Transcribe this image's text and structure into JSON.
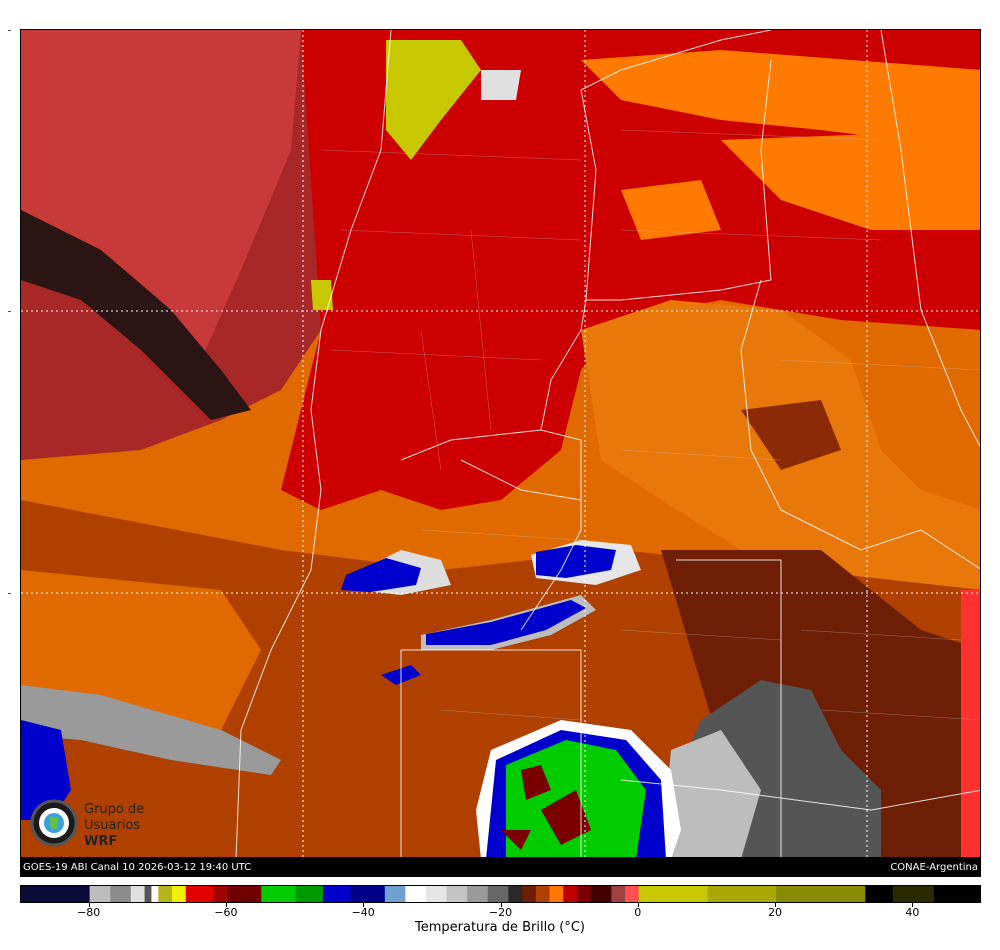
{
  "caption": {
    "left": "GOES-19 ABI Canal 10 2026-03-12 19:40 UTC",
    "right": "CONAE-Argentina"
  },
  "logo": {
    "line1": "Grupo de",
    "line2": "Usuarios",
    "line3": "WRF"
  },
  "colorbar": {
    "title": "Temperatura de Brillo (°C)",
    "min": -90,
    "max": 50,
    "ticks": [
      {
        "value": -80,
        "label": "−80"
      },
      {
        "value": -60,
        "label": "−60"
      },
      {
        "value": -40,
        "label": "−40"
      },
      {
        "value": -20,
        "label": "−20"
      },
      {
        "value": 0,
        "label": "0"
      },
      {
        "value": 20,
        "label": "20"
      },
      {
        "value": 40,
        "label": "40"
      }
    ],
    "segments": [
      {
        "from": -90,
        "to": -80,
        "color": "#0b0b3a"
      },
      {
        "from": -80,
        "to": -77,
        "color": "#bdbdbd"
      },
      {
        "from": -77,
        "to": -74,
        "color": "#8c8c8c"
      },
      {
        "from": -74,
        "to": -72,
        "color": "#e0e0e0"
      },
      {
        "from": -72,
        "to": -71,
        "color": "#555555"
      },
      {
        "from": -71,
        "to": -70,
        "color": "#ffffff"
      },
      {
        "from": -70,
        "to": -68,
        "color": "#b5b51a"
      },
      {
        "from": -68,
        "to": -66,
        "color": "#f0f000"
      },
      {
        "from": -66,
        "to": -62,
        "color": "#e00000"
      },
      {
        "from": -62,
        "to": -60,
        "color": "#a00000"
      },
      {
        "from": -60,
        "to": -55,
        "color": "#700000"
      },
      {
        "from": -55,
        "to": -50,
        "color": "#00cc00"
      },
      {
        "from": -50,
        "to": -46,
        "color": "#009900"
      },
      {
        "from": -46,
        "to": -42,
        "color": "#0000cc"
      },
      {
        "from": -42,
        "to": -37,
        "color": "#000088"
      },
      {
        "from": -37,
        "to": -34,
        "color": "#6fa0d0"
      },
      {
        "from": -34,
        "to": -31,
        "color": "#ffffff"
      },
      {
        "from": -31,
        "to": -28,
        "color": "#e6e6e6"
      },
      {
        "from": -28,
        "to": -25,
        "color": "#c4c4c4"
      },
      {
        "from": -25,
        "to": -22,
        "color": "#9a9a9a"
      },
      {
        "from": -22,
        "to": -19,
        "color": "#666666"
      },
      {
        "from": -19,
        "to": -17,
        "color": "#2a2a2a"
      },
      {
        "from": -17,
        "to": -15,
        "color": "#6e1e05"
      },
      {
        "from": -15,
        "to": -13,
        "color": "#b04000"
      },
      {
        "from": -13,
        "to": -11,
        "color": "#ff7700"
      },
      {
        "from": -11,
        "to": -9,
        "color": "#c00000"
      },
      {
        "from": -9,
        "to": -7,
        "color": "#7a0000"
      },
      {
        "from": -7,
        "to": -4,
        "color": "#400000"
      },
      {
        "from": -4,
        "to": -2,
        "color": "#a04040"
      },
      {
        "from": -2,
        "to": 0,
        "color": "#ff5050"
      },
      {
        "from": 0,
        "to": 10,
        "color": "#c8c800"
      },
      {
        "from": 10,
        "to": 20,
        "color": "#a8a800"
      },
      {
        "from": 20,
        "to": 33,
        "color": "#8a8a00"
      },
      {
        "from": 33,
        "to": 37,
        "color": "#000000"
      },
      {
        "from": 37,
        "to": 43,
        "color": "#2a2a00"
      },
      {
        "from": 43,
        "to": 50,
        "color": "#000000"
      }
    ]
  }
}
